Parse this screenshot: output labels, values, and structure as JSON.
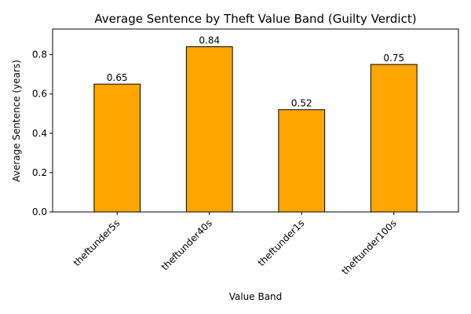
{
  "chart_data": {
    "type": "bar",
    "title": "Average Sentence by Theft Value Band (Guilty Verdict)",
    "xlabel": "Value Band",
    "ylabel": "Average Sentence (years)",
    "categories": [
      "theftunder5s",
      "theftunder40s",
      "theftunder1s",
      "theftunder100s"
    ],
    "values": [
      0.65,
      0.84,
      0.52,
      0.75
    ],
    "data_labels": [
      "0.65",
      "0.84",
      "0.52",
      "0.75"
    ],
    "ylim": [
      0,
      0.93
    ],
    "yticks": [
      0.0,
      0.2,
      0.4,
      0.6,
      0.8
    ],
    "ytick_labels": [
      "0.0",
      "0.2",
      "0.4",
      "0.6",
      "0.8"
    ],
    "grid": false,
    "legend": "none",
    "colors": {
      "bar": "#FFA500",
      "bar_edge": "#000000",
      "axes": "#000000",
      "background": "#ffffff"
    }
  }
}
